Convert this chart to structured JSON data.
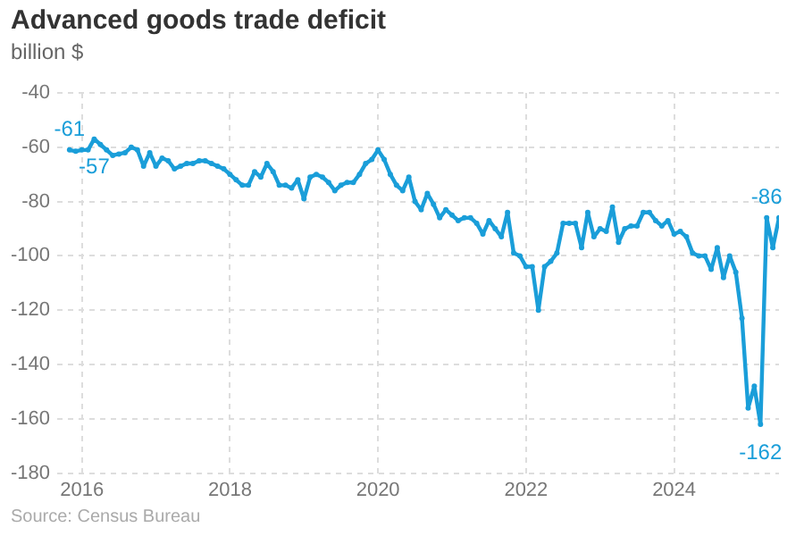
{
  "chart_data": {
    "type": "line",
    "title": "Advanced goods trade deficit",
    "subtitle": "billion $",
    "x": [
      "2015-11",
      "2015-12",
      "2016-01",
      "2016-02",
      "2016-03",
      "2016-04",
      "2016-05",
      "2016-06",
      "2016-07",
      "2016-08",
      "2016-09",
      "2016-10",
      "2016-11",
      "2016-12",
      "2017-01",
      "2017-02",
      "2017-03",
      "2017-04",
      "2017-05",
      "2017-06",
      "2017-07",
      "2017-08",
      "2017-09",
      "2017-10",
      "2017-11",
      "2017-12",
      "2018-01",
      "2018-02",
      "2018-03",
      "2018-04",
      "2018-05",
      "2018-06",
      "2018-07",
      "2018-08",
      "2018-09",
      "2018-10",
      "2018-11",
      "2018-12",
      "2019-01",
      "2019-02",
      "2019-03",
      "2019-04",
      "2019-05",
      "2019-06",
      "2019-07",
      "2019-08",
      "2019-09",
      "2019-10",
      "2019-11",
      "2019-12",
      "2020-01",
      "2020-02",
      "2020-03",
      "2020-04",
      "2020-05",
      "2020-06",
      "2020-07",
      "2020-08",
      "2020-09",
      "2020-10",
      "2020-11",
      "2020-12",
      "2021-01",
      "2021-02",
      "2021-03",
      "2021-04",
      "2021-05",
      "2021-06",
      "2021-07",
      "2021-08",
      "2021-09",
      "2021-10",
      "2021-11",
      "2021-12",
      "2022-01",
      "2022-02",
      "2022-03",
      "2022-04",
      "2022-05",
      "2022-06",
      "2022-07",
      "2022-08",
      "2022-09",
      "2022-10",
      "2022-11",
      "2022-12",
      "2023-01",
      "2023-02",
      "2023-03",
      "2023-04",
      "2023-05",
      "2023-06",
      "2023-07",
      "2023-08",
      "2023-09",
      "2023-10",
      "2023-11",
      "2023-12",
      "2024-01",
      "2024-02",
      "2024-03",
      "2024-04",
      "2024-05",
      "2024-06",
      "2024-07",
      "2024-08",
      "2024-09",
      "2024-10",
      "2024-11",
      "2024-12",
      "2025-01",
      "2025-02",
      "2025-03",
      "2025-04",
      "2025-05",
      "2025-06"
    ],
    "series": [
      {
        "color": "#1a9ed9",
        "values": [
          -61,
          -61.5,
          -61,
          -61,
          -57,
          -59,
          -61,
          -63,
          -62.5,
          -62,
          -60,
          -61,
          -67,
          -62,
          -67,
          -64,
          -65,
          -68,
          -67,
          -66,
          -66,
          -65,
          -65,
          -66,
          -67,
          -68,
          -70,
          -72,
          -74,
          -74,
          -69,
          -71,
          -66,
          -69,
          -74,
          -74,
          -75,
          -72,
          -79,
          -71,
          -70,
          -71,
          -73,
          -76,
          -74,
          -73,
          -73,
          -70,
          -66,
          -64.5,
          -61,
          -64.5,
          -70,
          -74,
          -76,
          -71,
          -80,
          -83,
          -77,
          -81,
          -86,
          -83,
          -85,
          -87,
          -86,
          -86,
          -88,
          -92,
          -87,
          -90,
          -93,
          -84,
          -99,
          -100,
          -104,
          -104,
          -120,
          -104,
          -102,
          -99,
          -88,
          -88,
          -88,
          -97,
          -84,
          -93,
          -90,
          -91,
          -82,
          -95,
          -90,
          -89,
          -89,
          -84,
          -84,
          -87,
          -89,
          -87,
          -92,
          -91,
          -93,
          -99,
          -100,
          -100,
          -105,
          -97,
          -108,
          -100,
          -106,
          -123,
          -156,
          -148,
          -162,
          -86,
          -97,
          -86
        ]
      }
    ],
    "xlim": [
      "2015-09",
      "2025-06"
    ],
    "xticks": [
      {
        "value": "2016",
        "label": "2016"
      },
      {
        "value": "2018",
        "label": "2018"
      },
      {
        "value": "2020",
        "label": "2020"
      },
      {
        "value": "2022",
        "label": "2022"
      },
      {
        "value": "2024",
        "label": "2024"
      }
    ],
    "ylim": [
      -180,
      -40
    ],
    "yticks": [
      -40,
      -60,
      -80,
      -100,
      -120,
      -140,
      -160,
      -180
    ],
    "grid": true,
    "marker": "circle",
    "line_style": "solid",
    "annotations": [
      {
        "text": "-61",
        "x": "2015-11",
        "y": -61
      },
      {
        "text": "-57",
        "x": "2016-03",
        "y": -57
      },
      {
        "text": "-162",
        "x": "2025-03",
        "y": -162
      },
      {
        "text": "-86",
        "x": "2025-04",
        "y": -86
      },
      "Source: Census Bureau"
    ]
  }
}
